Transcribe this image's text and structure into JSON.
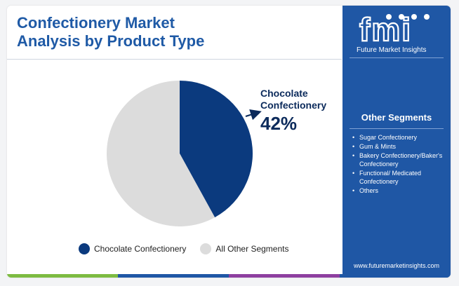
{
  "title_line1": "Confectionery Market",
  "title_line2": "Analysis by Product Type",
  "chart_data": {
    "type": "pie",
    "slices": [
      {
        "label": "Chocolate Confectionery",
        "value": 42,
        "color": "#0b3a7e"
      },
      {
        "label": "All Other Segments",
        "value": 58,
        "color": "#dcdcdc"
      }
    ],
    "legend": "bottom"
  },
  "callout": {
    "label_line1": "Chocolate",
    "label_line2": "Confectionery",
    "value": "42%"
  },
  "legend": [
    {
      "label": "Chocolate Confectionery",
      "color": "#0b3a7e"
    },
    {
      "label": "All Other Segments",
      "color": "#dcdcdc"
    }
  ],
  "panel": {
    "logo_text": "fmi",
    "logo_sub": "Future Market Insights",
    "heading": "Other Segments",
    "segments": [
      "Sugar Confectionery",
      "Gum & Mints",
      "Bakery Confectionery/Baker's Confectionery",
      "Functional/ Medicated Confectionery",
      "Others"
    ],
    "website": "www.futuremarketinsights.com",
    "background_color": "#1f57a5"
  },
  "bottom_bar_colors": [
    "#7dbb42",
    "#1f57a5",
    "#8e3fa0",
    "#1f57a5"
  ]
}
